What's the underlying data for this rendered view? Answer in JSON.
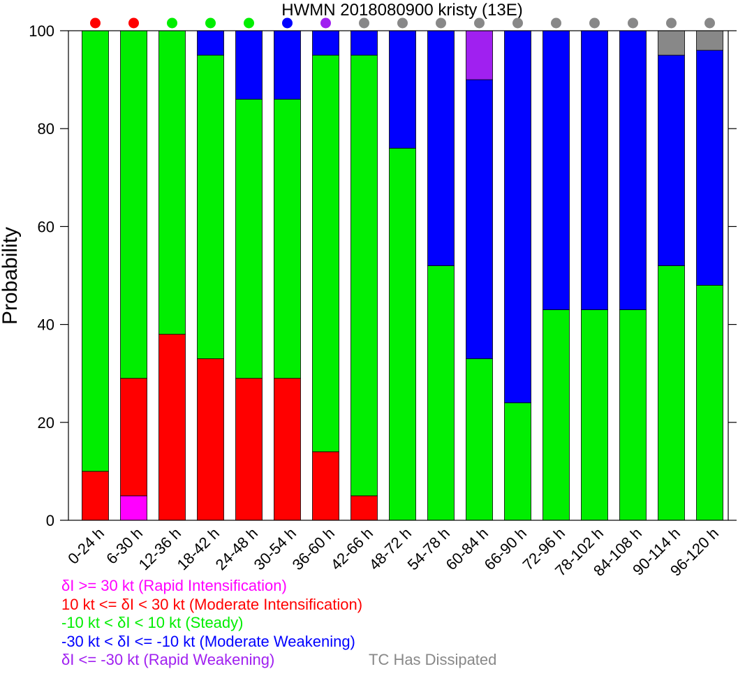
{
  "chart_data": {
    "type": "bar",
    "stacked": true,
    "title": "HWMN 2018080900 kristy (13E)",
    "ylabel": "Probability",
    "xlabel": "",
    "ylim": [
      0,
      100
    ],
    "yticks": [
      0,
      20,
      40,
      60,
      80,
      100
    ],
    "categories": [
      "0-24 h",
      "6-30 h",
      "12-36 h",
      "18-42 h",
      "24-48 h",
      "30-54 h",
      "36-60 h",
      "42-66 h",
      "48-72 h",
      "54-78 h",
      "60-84 h",
      "66-90 h",
      "72-96 h",
      "78-102 h",
      "84-108 h",
      "90-114 h",
      "96-120 h"
    ],
    "series": [
      {
        "key": "ri",
        "color": "#ff00ff",
        "values": [
          0,
          5,
          0,
          0,
          0,
          0,
          0,
          0,
          0,
          0,
          0,
          0,
          0,
          0,
          0,
          0,
          0
        ]
      },
      {
        "key": "mi",
        "color": "#ff0000",
        "values": [
          10,
          24,
          38,
          33,
          29,
          29,
          14,
          5,
          0,
          0,
          0,
          0,
          0,
          0,
          0,
          0,
          0
        ]
      },
      {
        "key": "steady",
        "color": "#00ee00",
        "values": [
          90,
          71,
          62,
          62,
          57,
          57,
          81,
          90,
          76,
          52,
          33,
          24,
          43,
          43,
          43,
          52,
          48
        ]
      },
      {
        "key": "mw",
        "color": "#0000ff",
        "values": [
          0,
          0,
          0,
          5,
          14,
          14,
          5,
          5,
          24,
          48,
          57,
          76,
          57,
          57,
          57,
          43,
          48
        ]
      },
      {
        "key": "rw",
        "color": "#a020f0",
        "values": [
          0,
          0,
          0,
          0,
          0,
          0,
          0,
          0,
          0,
          0,
          10,
          0,
          0,
          0,
          0,
          0,
          0
        ]
      },
      {
        "key": "td",
        "color": "#888888",
        "values": [
          0,
          0,
          0,
          0,
          0,
          0,
          0,
          0,
          0,
          0,
          0,
          0,
          0,
          0,
          0,
          5,
          4
        ]
      }
    ],
    "dot_colors": [
      "#ff0000",
      "#ff0000",
      "#00ee00",
      "#00ee00",
      "#00ee00",
      "#0000ff",
      "#a020f0",
      "#888888",
      "#888888",
      "#888888",
      "#888888",
      "#888888",
      "#888888",
      "#888888",
      "#888888",
      "#888888",
      "#888888"
    ],
    "grid": false
  },
  "legend": {
    "items": [
      {
        "text": "δI >= 30 kt (Rapid Intensification)",
        "color": "#ff00ff"
      },
      {
        "text": "10 kt <= δI < 30 kt (Moderate Intensification)",
        "color": "#ff0000"
      },
      {
        "text": "-10 kt < δI < 10 kt (Steady)",
        "color": "#00ee00"
      },
      {
        "text": "-30 kt < δI <= -10 kt (Moderate Weakening)",
        "color": "#0000ff"
      },
      {
        "text": "δI <= -30 kt (Rapid Weakening)",
        "color": "#a020f0"
      }
    ],
    "dissipated": {
      "text": "TC Has Dissipated",
      "color": "#888888"
    }
  }
}
